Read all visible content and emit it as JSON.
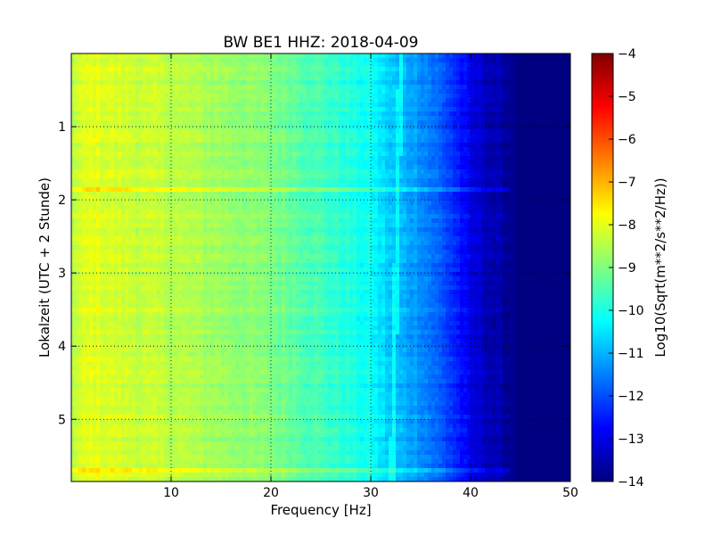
{
  "chart_data": {
    "type": "heatmap",
    "title": "BW BE1 HHZ: 2018-04-09",
    "xlabel": "Frequency [Hz]",
    "ylabel": "Lokalzeit (UTC + 2 Stunde)",
    "colorbar_label": "Log10(Sqrt(m**2/s**2/Hz))",
    "xlim": [
      0,
      50
    ],
    "ylim": [
      5.85,
      0
    ],
    "y_inverted": true,
    "xticks": [
      10,
      20,
      30,
      40,
      50
    ],
    "yticks": [
      1,
      2,
      3,
      4,
      5
    ],
    "colorbar_range": [
      -14,
      -4
    ],
    "colorbar_ticks": [
      -14,
      -13,
      -12,
      -11,
      -10,
      -9,
      -8,
      -7,
      -6,
      -5,
      -4
    ],
    "colormap": "jet",
    "grid": true,
    "frequency_profile": {
      "frequency_hz": [
        0,
        2,
        5,
        10,
        15,
        20,
        25,
        30,
        32,
        35,
        38,
        40,
        42,
        44,
        45,
        50
      ],
      "log_amplitude": [
        -8.4,
        -8.0,
        -8.2,
        -8.4,
        -8.7,
        -9.0,
        -9.6,
        -10.2,
        -10.8,
        -11.3,
        -12.2,
        -13.0,
        -13.5,
        -13.8,
        -14.0,
        -14.0
      ]
    },
    "notable_features": [
      {
        "type": "vertical_line",
        "frequency_hz": 33,
        "note": "light cyan trace from top to bottom"
      },
      {
        "type": "horizontal_band",
        "time_h": 5.7,
        "note": "brighter band across frequencies"
      },
      {
        "type": "horizontal_band",
        "time_h": 1.85,
        "note": "brighter band across frequencies"
      }
    ]
  }
}
